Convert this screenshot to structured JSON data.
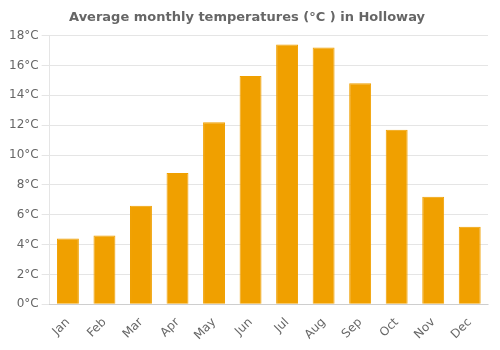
{
  "chart_data": {
    "type": "bar",
    "title": "Average monthly temperatures (°C ) in Holloway",
    "categories": [
      "Jan",
      "Feb",
      "Mar",
      "Apr",
      "May",
      "Jun",
      "Jul",
      "Aug",
      "Sep",
      "Oct",
      "Nov",
      "Dec"
    ],
    "values": [
      4.4,
      4.6,
      6.6,
      8.8,
      12.2,
      15.3,
      17.4,
      17.2,
      14.8,
      11.7,
      7.2,
      5.2
    ],
    "color": "#F0A000",
    "ylim": [
      0,
      18
    ],
    "yticks": [
      {
        "value": 0,
        "label": "0°C"
      },
      {
        "value": 2,
        "label": "2°C"
      },
      {
        "value": 4,
        "label": "4°C"
      },
      {
        "value": 6,
        "label": "6°C"
      },
      {
        "value": 8,
        "label": "8°C"
      },
      {
        "value": 10,
        "label": "10°C"
      },
      {
        "value": 12,
        "label": "12°C"
      },
      {
        "value": 14,
        "label": "14°C"
      },
      {
        "value": 16,
        "label": "16°C"
      },
      {
        "value": 18,
        "label": "18°C"
      }
    ],
    "grid": true
  }
}
